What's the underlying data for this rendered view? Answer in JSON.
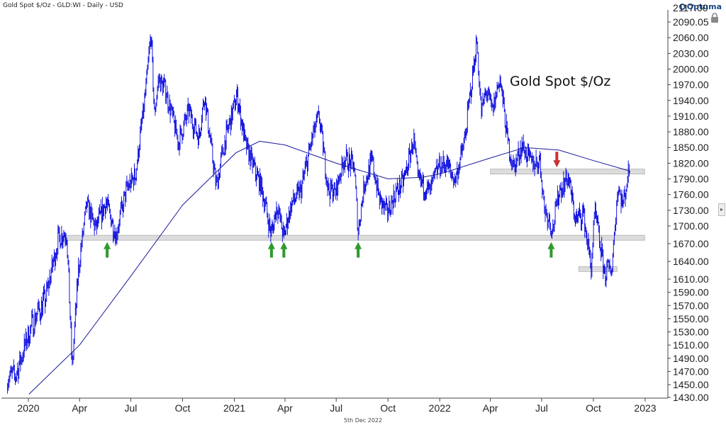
{
  "header": {
    "title": "Gold Spot $/Oz - GLD:WI - Daily - USD",
    "brand": "Optuma"
  },
  "footer": {
    "date": "5th Dec 2022"
  },
  "chart_data": {
    "type": "line",
    "title": "Gold Spot $/Oz",
    "xlabel": "",
    "ylabel": "",
    "ylim": [
      1430,
      2120
    ],
    "x_tick_labels": [
      "2020",
      "Apr",
      "Jul",
      "Oct",
      "2021",
      "Apr",
      "Jul",
      "Oct",
      "2022",
      "Apr",
      "Jul",
      "Oct",
      "2023"
    ],
    "y_tick_labels": [
      "1430.00",
      "1450.00",
      "1470.00",
      "1490.00",
      "1510.00",
      "1530.00",
      "1550.00",
      "1570.00",
      "1590.00",
      "1610.00",
      "1640.00",
      "1670.00",
      "1700.00",
      "1730.00",
      "1760.00",
      "1790.00",
      "1820.00",
      "1850.00",
      "1880.00",
      "1910.00",
      "1940.00",
      "1970.00",
      "2000.00",
      "2030.00",
      "2060.00",
      "2090.05"
    ],
    "top_partial_tick": "2117.00",
    "price_points": [
      [
        "2019-11-25",
        1460
      ],
      [
        "2019-12-10",
        1465
      ],
      [
        "2019-12-30",
        1520
      ],
      [
        "2020-01-15",
        1555
      ],
      [
        "2020-02-01",
        1580
      ],
      [
        "2020-02-24",
        1680
      ],
      [
        "2020-03-09",
        1690
      ],
      [
        "2020-03-19",
        1475
      ],
      [
        "2020-03-30",
        1625
      ],
      [
        "2020-04-14",
        1740
      ],
      [
        "2020-04-30",
        1695
      ],
      [
        "2020-05-18",
        1745
      ],
      [
        "2020-06-05",
        1685
      ],
      [
        "2020-06-24",
        1770
      ],
      [
        "2020-07-10",
        1800
      ],
      [
        "2020-07-28",
        1960
      ],
      [
        "2020-08-06",
        2067
      ],
      [
        "2020-08-12",
        1915
      ],
      [
        "2020-08-20",
        1980
      ],
      [
        "2020-09-01",
        1960
      ],
      [
        "2020-09-24",
        1860
      ],
      [
        "2020-10-12",
        1920
      ],
      [
        "2020-10-30",
        1870
      ],
      [
        "2020-11-09",
        1950
      ],
      [
        "2020-11-30",
        1775
      ],
      [
        "2020-12-15",
        1860
      ],
      [
        "2021-01-06",
        1950
      ],
      [
        "2021-01-20",
        1860
      ],
      [
        "2021-02-05",
        1810
      ],
      [
        "2021-02-18",
        1775
      ],
      [
        "2021-03-08",
        1685
      ],
      [
        "2021-03-18",
        1740
      ],
      [
        "2021-03-30",
        1680
      ],
      [
        "2021-04-12",
        1740
      ],
      [
        "2021-04-30",
        1770
      ],
      [
        "2021-05-20",
        1870
      ],
      [
        "2021-06-01",
        1910
      ],
      [
        "2021-06-17",
        1770
      ],
      [
        "2021-06-30",
        1765
      ],
      [
        "2021-07-15",
        1830
      ],
      [
        "2021-08-02",
        1815
      ],
      [
        "2021-08-09",
        1690
      ],
      [
        "2021-08-20",
        1780
      ],
      [
        "2021-09-03",
        1825
      ],
      [
        "2021-09-16",
        1750
      ],
      [
        "2021-09-29",
        1725
      ],
      [
        "2021-10-15",
        1765
      ],
      [
        "2021-10-29",
        1785
      ],
      [
        "2021-11-16",
        1865
      ],
      [
        "2021-11-23",
        1790
      ],
      [
        "2021-12-15",
        1765
      ],
      [
        "2021-12-30",
        1815
      ],
      [
        "2022-01-14",
        1820
      ],
      [
        "2022-01-28",
        1785
      ],
      [
        "2022-02-14",
        1860
      ],
      [
        "2022-03-08",
        2055
      ],
      [
        "2022-03-16",
        1915
      ],
      [
        "2022-03-25",
        1960
      ],
      [
        "2022-04-05",
        1920
      ],
      [
        "2022-04-18",
        1985
      ],
      [
        "2022-05-02",
        1860
      ],
      [
        "2022-05-13",
        1810
      ],
      [
        "2022-05-27",
        1855
      ],
      [
        "2022-06-13",
        1820
      ],
      [
        "2022-06-28",
        1825
      ],
      [
        "2022-07-06",
        1735
      ],
      [
        "2022-07-21",
        1695
      ],
      [
        "2022-08-01",
        1765
      ],
      [
        "2022-08-17",
        1795
      ],
      [
        "2022-08-31",
        1710
      ],
      [
        "2022-09-13",
        1725
      ],
      [
        "2022-09-27",
        1630
      ],
      [
        "2022-10-04",
        1725
      ],
      [
        "2022-10-21",
        1620
      ],
      [
        "2022-11-03",
        1630
      ],
      [
        "2022-11-14",
        1775
      ],
      [
        "2022-11-23",
        1740
      ],
      [
        "2022-12-02",
        1800
      ],
      [
        "2022-12-05",
        1805
      ]
    ],
    "moving_average": [
      [
        "2020-01-02",
        1435
      ],
      [
        "2020-04-01",
        1510
      ],
      [
        "2020-07-01",
        1615
      ],
      [
        "2020-10-01",
        1740
      ],
      [
        "2021-01-04",
        1840
      ],
      [
        "2021-02-15",
        1862
      ],
      [
        "2021-04-01",
        1855
      ],
      [
        "2021-07-01",
        1820
      ],
      [
        "2021-10-01",
        1790
      ],
      [
        "2021-12-01",
        1793
      ],
      [
        "2022-01-03",
        1800
      ],
      [
        "2022-04-01",
        1830
      ],
      [
        "2022-06-01",
        1850
      ],
      [
        "2022-08-01",
        1845
      ],
      [
        "2022-10-01",
        1825
      ],
      [
        "2022-12-05",
        1805
      ]
    ],
    "support_resistance_bands": [
      {
        "from": "2020-03-01",
        "to": "2022-12-31",
        "level": 1680
      },
      {
        "from": "2022-04-01",
        "to": "2022-12-31",
        "level": 1804
      },
      {
        "from": "2022-09-05",
        "to": "2022-11-12",
        "level": 1627
      }
    ],
    "up_arrows": [
      "2020-05-20",
      "2021-03-08",
      "2021-03-30",
      "2021-08-09",
      "2022-07-18"
    ],
    "down_arrows": [
      "2022-07-28"
    ],
    "colors": {
      "price": "#0000dd",
      "moving_average": "#1a1a9a",
      "band_fill": "#dcdcdc",
      "band_stroke": "#b0b0b0",
      "up_arrow": "#2e9a2e",
      "down_arrow": "#c83232",
      "axis": "#444444",
      "grid_text": "#222222"
    },
    "grid": false,
    "legend": "none"
  }
}
